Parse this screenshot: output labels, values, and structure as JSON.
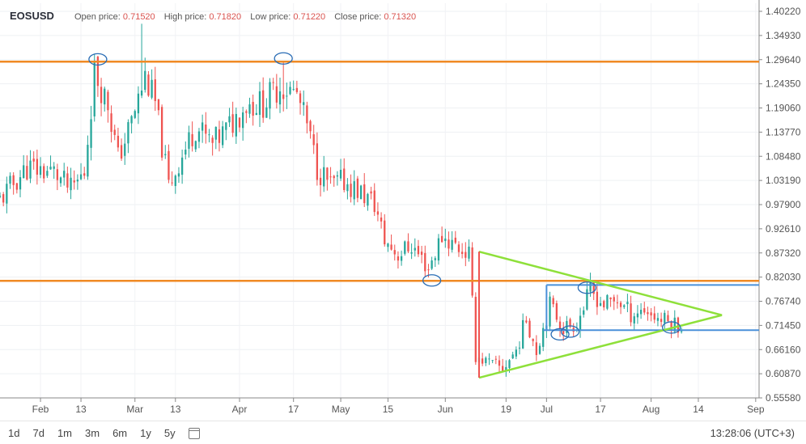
{
  "header": {
    "symbol": "EOSUSD",
    "open_label": "Open price:",
    "open_value": "0.71520",
    "high_label": "High price:",
    "high_value": "0.71820",
    "low_label": "Low price:",
    "low_value": "0.71220",
    "close_label": "Close price:",
    "close_value": "0.71320"
  },
  "ranges": [
    "1d",
    "7d",
    "1m",
    "3m",
    "6m",
    "1y",
    "5y"
  ],
  "calendar_icon": "calendar-icon",
  "clock": "13:28:06 (UTC+3)",
  "colors": {
    "up": "#26a69a",
    "down": "#ef5350",
    "resistance": "#f08a24",
    "box": "#4a90d9",
    "triangle": "#8ee03a",
    "marker": "#2a6db5"
  },
  "chart_data": {
    "type": "candlestick",
    "y_ticks": [
      "1.40220",
      "1.34930",
      "1.29640",
      "1.24350",
      "1.19060",
      "1.13770",
      "1.08480",
      "1.03190",
      "0.97900",
      "0.92610",
      "0.87320",
      "0.82030",
      "0.76740",
      "0.71450",
      "0.66160",
      "0.60870",
      "0.55580"
    ],
    "ylim": [
      0.5558,
      1.4022
    ],
    "x_ticks": [
      "Feb",
      "13",
      "Mar",
      "13",
      "Apr",
      "17",
      "May",
      "15",
      "Jun",
      "19",
      "Jul",
      "17",
      "Aug",
      "14",
      "Sep"
    ],
    "x_tick_days": [
      0,
      12,
      28,
      40,
      59,
      75,
      89,
      103,
      120,
      138,
      150,
      166,
      181,
      195,
      212
    ],
    "xlim_days": [
      -12,
      213
    ],
    "closes": [
      {
        "day": -12,
        "value": 0.99
      },
      {
        "day": -4,
        "value": 1.06
      },
      {
        "day": 4,
        "value": 1.05
      },
      {
        "day": 9,
        "value": 1.01
      },
      {
        "day": 13,
        "value": 1.05
      },
      {
        "day": 16,
        "value": 1.27
      },
      {
        "day": 20,
        "value": 1.2
      },
      {
        "day": 23,
        "value": 1.08
      },
      {
        "day": 27,
        "value": 1.16
      },
      {
        "day": 31,
        "value": 1.26
      },
      {
        "day": 34,
        "value": 1.2
      },
      {
        "day": 38,
        "value": 1.02
      },
      {
        "day": 41,
        "value": 1.07
      },
      {
        "day": 46,
        "value": 1.15
      },
      {
        "day": 51,
        "value": 1.11
      },
      {
        "day": 56,
        "value": 1.15
      },
      {
        "day": 61,
        "value": 1.2
      },
      {
        "day": 66,
        "value": 1.2
      },
      {
        "day": 71,
        "value": 1.24
      },
      {
        "day": 76,
        "value": 1.22
      },
      {
        "day": 79,
        "value": 1.15
      },
      {
        "day": 82,
        "value": 1.06
      },
      {
        "day": 86,
        "value": 1.02
      },
      {
        "day": 90,
        "value": 1.03
      },
      {
        "day": 94,
        "value": 1.01
      },
      {
        "day": 99,
        "value": 0.98
      },
      {
        "day": 102,
        "value": 0.9
      },
      {
        "day": 106,
        "value": 0.87
      },
      {
        "day": 110,
        "value": 0.89
      },
      {
        "day": 115,
        "value": 0.84
      },
      {
        "day": 119,
        "value": 0.91
      },
      {
        "day": 123,
        "value": 0.89
      },
      {
        "day": 127,
        "value": 0.87
      },
      {
        "day": 129,
        "value": 0.65
      },
      {
        "day": 133,
        "value": 0.63
      },
      {
        "day": 137,
        "value": 0.62
      },
      {
        "day": 141,
        "value": 0.66
      },
      {
        "day": 144,
        "value": 0.73
      },
      {
        "day": 147,
        "value": 0.66
      },
      {
        "day": 151,
        "value": 0.76
      },
      {
        "day": 155,
        "value": 0.71
      },
      {
        "day": 159,
        "value": 0.72
      },
      {
        "day": 163,
        "value": 0.79
      },
      {
        "day": 167,
        "value": 0.76
      },
      {
        "day": 171,
        "value": 0.77
      },
      {
        "day": 175,
        "value": 0.74
      },
      {
        "day": 179,
        "value": 0.75
      },
      {
        "day": 183,
        "value": 0.73
      },
      {
        "day": 187,
        "value": 0.72
      },
      {
        "day": 190,
        "value": 0.715
      }
    ],
    "spikes": [
      {
        "day": 30,
        "high": 1.375
      },
      {
        "day": 17,
        "high": 1.3
      },
      {
        "day": 72,
        "high": 1.29
      },
      {
        "day": 163,
        "high": 0.83
      }
    ],
    "levels": [
      {
        "name": "resistance-upper",
        "price": 1.292
      },
      {
        "name": "resistance-lower",
        "price": 0.812
      }
    ],
    "box_lines": [
      {
        "price": 0.803,
        "from_day": 150,
        "to_day": 213
      },
      {
        "price": 0.704,
        "from_day": 149,
        "to_day": 213
      }
    ],
    "triangle": [
      {
        "from": [
          130,
          0.876
        ],
        "to": [
          202,
          0.737
        ]
      },
      {
        "from": [
          130,
          0.6
        ],
        "to": [
          202,
          0.737
        ]
      }
    ],
    "markers": [
      {
        "day": 17,
        "price": 1.297
      },
      {
        "day": 72,
        "price": 1.299
      },
      {
        "day": 116,
        "price": 0.813
      },
      {
        "day": 154,
        "price": 0.695
      },
      {
        "day": 157,
        "price": 0.701
      },
      {
        "day": 162,
        "price": 0.797
      },
      {
        "day": 187,
        "price": 0.71
      }
    ]
  }
}
